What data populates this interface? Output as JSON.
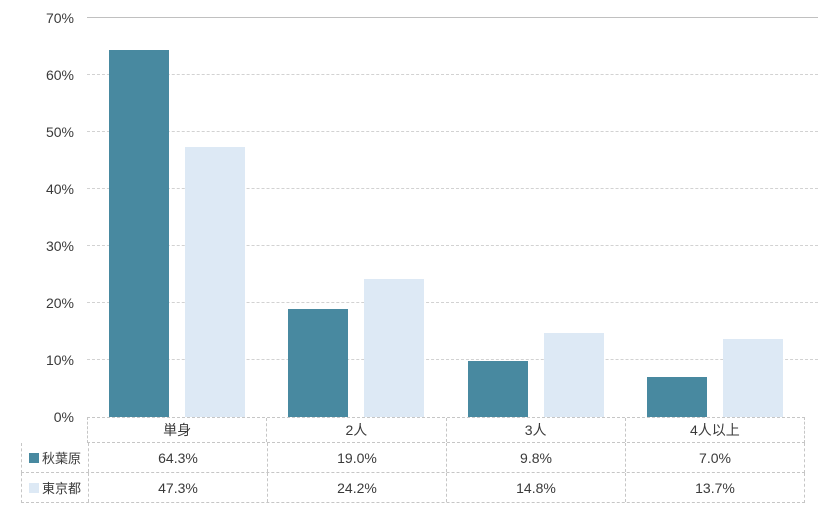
{
  "chart_data": {
    "type": "bar",
    "title": "",
    "categories": [
      "単身",
      "2人",
      "3人",
      "4人以上"
    ],
    "series": [
      {
        "name": "秋葉原",
        "color": "#4889a0",
        "values": [
          64.3,
          19.0,
          9.8,
          7.0
        ]
      },
      {
        "name": "東京都",
        "color": "#dde9f5",
        "values": [
          47.3,
          24.2,
          14.8,
          13.7
        ]
      }
    ],
    "xlabel": "",
    "ylabel": "",
    "ylim": [
      0,
      70
    ],
    "ytick_step": 10,
    "ytick_suffix": "%",
    "grid": true,
    "legend_position": "data-table-left"
  },
  "table": {
    "headers": [
      "単身",
      "2人",
      "3人",
      "4人以上"
    ],
    "rows": [
      {
        "label": "秋葉原",
        "swatch": "#4889a0",
        "values": [
          "64.3%",
          "19.0%",
          "9.8%",
          "7.0%"
        ]
      },
      {
        "label": "東京都",
        "swatch": "#dde9f5",
        "values": [
          "47.3%",
          "24.2%",
          "14.8%",
          "13.7%"
        ]
      }
    ]
  },
  "colors": {
    "series1": "#4889a0",
    "series2": "#dde9f5",
    "gridline": "#d2d2d2",
    "top_gridline": "#c0c0c0",
    "table_border": "#c6c6c6",
    "text": "#3a3a3a",
    "background": "#ffffff"
  }
}
